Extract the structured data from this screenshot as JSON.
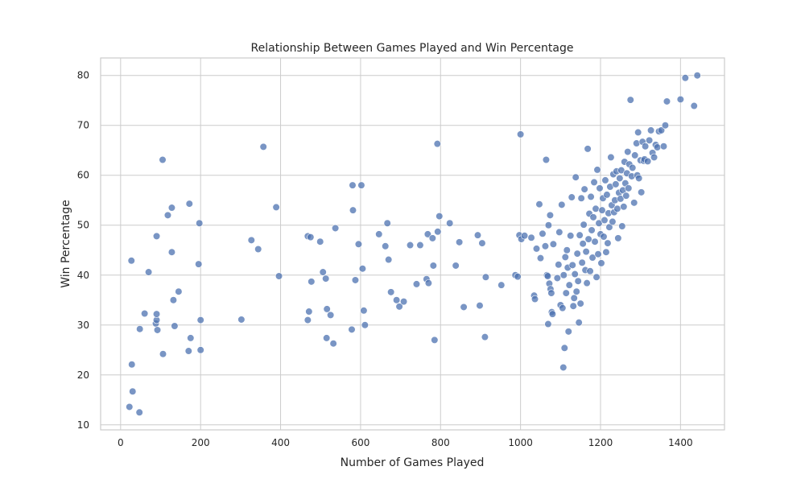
{
  "chart_data": {
    "type": "scatter",
    "title": "Relationship Between Games Played and Win Percentage",
    "xlabel": "Number of Games Played",
    "ylabel": "Win Percentage",
    "xlim": [
      -50,
      1510
    ],
    "ylim": [
      9,
      83.5
    ],
    "x_ticks": [
      0,
      200,
      400,
      600,
      800,
      1000,
      1200,
      1400
    ],
    "y_ticks": [
      10,
      20,
      30,
      40,
      50,
      60,
      70,
      80
    ],
    "grid": true,
    "point_color": "#4c72b0",
    "points": [
      [
        22,
        13.6
      ],
      [
        30,
        16.7
      ],
      [
        28,
        22.1
      ],
      [
        47,
        12.5
      ],
      [
        27,
        42.9
      ],
      [
        48,
        29.2
      ],
      [
        60,
        32.3
      ],
      [
        70,
        40.6
      ],
      [
        88,
        30.3
      ],
      [
        90,
        31.0
      ],
      [
        90,
        32.2
      ],
      [
        90,
        47.8
      ],
      [
        92,
        29.0
      ],
      [
        105,
        63.1
      ],
      [
        106,
        24.2
      ],
      [
        118,
        52.0
      ],
      [
        128,
        53.5
      ],
      [
        128,
        44.6
      ],
      [
        132,
        35.0
      ],
      [
        135,
        29.8
      ],
      [
        145,
        36.7
      ],
      [
        170,
        24.8
      ],
      [
        172,
        54.3
      ],
      [
        175,
        27.4
      ],
      [
        195,
        42.2
      ],
      [
        197,
        50.4
      ],
      [
        200,
        31.0
      ],
      [
        200,
        25.0
      ],
      [
        302,
        31.1
      ],
      [
        327,
        47.0
      ],
      [
        344,
        45.2
      ],
      [
        357,
        65.7
      ],
      [
        389,
        53.6
      ],
      [
        396,
        39.8
      ],
      [
        468,
        31.0
      ],
      [
        468,
        47.8
      ],
      [
        471,
        32.7
      ],
      [
        475,
        47.6
      ],
      [
        477,
        38.7
      ],
      [
        499,
        46.7
      ],
      [
        506,
        40.6
      ],
      [
        513,
        39.3
      ],
      [
        515,
        27.4
      ],
      [
        516,
        33.2
      ],
      [
        525,
        32.0
      ],
      [
        532,
        26.3
      ],
      [
        537,
        49.4
      ],
      [
        578,
        29.1
      ],
      [
        580,
        58.0
      ],
      [
        581,
        53.0
      ],
      [
        587,
        39.0
      ],
      [
        595,
        46.2
      ],
      [
        602,
        58.0
      ],
      [
        605,
        41.3
      ],
      [
        608,
        32.9
      ],
      [
        611,
        30.0
      ],
      [
        646,
        48.2
      ],
      [
        662,
        45.8
      ],
      [
        667,
        50.4
      ],
      [
        670,
        43.1
      ],
      [
        676,
        36.6
      ],
      [
        690,
        35.0
      ],
      [
        697,
        33.7
      ],
      [
        708,
        34.7
      ],
      [
        724,
        46.0
      ],
      [
        740,
        38.2
      ],
      [
        749,
        46.0
      ],
      [
        765,
        39.2
      ],
      [
        768,
        48.2
      ],
      [
        770,
        38.4
      ],
      [
        780,
        47.4
      ],
      [
        782,
        41.9
      ],
      [
        785,
        27.0
      ],
      [
        792,
        66.3
      ],
      [
        793,
        48.7
      ],
      [
        797,
        51.8
      ],
      [
        823,
        50.4
      ],
      [
        838,
        41.9
      ],
      [
        847,
        46.6
      ],
      [
        858,
        33.6
      ],
      [
        893,
        48.0
      ],
      [
        898,
        33.9
      ],
      [
        904,
        46.4
      ],
      [
        911,
        27.6
      ],
      [
        913,
        39.6
      ],
      [
        952,
        38.0
      ],
      [
        987,
        40.0
      ],
      [
        993,
        39.7
      ],
      [
        997,
        48.0
      ],
      [
        1000,
        68.2
      ],
      [
        1002,
        47.2
      ],
      [
        1010,
        47.9
      ],
      [
        1027,
        47.5
      ],
      [
        1034,
        35.9
      ],
      [
        1036,
        35.2
      ],
      [
        1040,
        45.3
      ],
      [
        1047,
        54.2
      ],
      [
        1050,
        43.4
      ],
      [
        1055,
        48.3
      ],
      [
        1062,
        45.8
      ],
      [
        1064,
        63.1
      ],
      [
        1066,
        40.0
      ],
      [
        1068,
        39.8
      ],
      [
        1069,
        30.2
      ],
      [
        1070,
        50.0
      ],
      [
        1072,
        38.3
      ],
      [
        1074,
        52.0
      ],
      [
        1075,
        37.2
      ],
      [
        1077,
        36.4
      ],
      [
        1078,
        32.6
      ],
      [
        1080,
        32.2
      ],
      [
        1082,
        46.2
      ],
      [
        1092,
        39.4
      ],
      [
        1095,
        42.1
      ],
      [
        1097,
        48.6
      ],
      [
        1100,
        34.0
      ],
      [
        1103,
        54.1
      ],
      [
        1105,
        33.4
      ],
      [
        1107,
        21.5
      ],
      [
        1108,
        40.0
      ],
      [
        1110,
        25.4
      ],
      [
        1112,
        43.6
      ],
      [
        1114,
        36.4
      ],
      [
        1116,
        45.0
      ],
      [
        1118,
        41.5
      ],
      [
        1120,
        28.7
      ],
      [
        1122,
        38.0
      ],
      [
        1125,
        47.9
      ],
      [
        1128,
        55.6
      ],
      [
        1130,
        42.0
      ],
      [
        1132,
        33.8
      ],
      [
        1134,
        35.4
      ],
      [
        1136,
        40.2
      ],
      [
        1138,
        59.6
      ],
      [
        1140,
        36.7
      ],
      [
        1142,
        44.3
      ],
      [
        1144,
        38.8
      ],
      [
        1146,
        30.5
      ],
      [
        1148,
        48.0
      ],
      [
        1150,
        34.3
      ],
      [
        1152,
        55.4
      ],
      [
        1154,
        42.5
      ],
      [
        1156,
        46.3
      ],
      [
        1158,
        50.1
      ],
      [
        1160,
        57.2
      ],
      [
        1162,
        41.0
      ],
      [
        1164,
        44.7
      ],
      [
        1166,
        38.4
      ],
      [
        1168,
        65.3
      ],
      [
        1170,
        47.2
      ],
      [
        1172,
        52.3
      ],
      [
        1174,
        40.8
      ],
      [
        1176,
        55.7
      ],
      [
        1178,
        49.0
      ],
      [
        1180,
        43.5
      ],
      [
        1182,
        51.6
      ],
      [
        1184,
        58.6
      ],
      [
        1186,
        46.7
      ],
      [
        1188,
        53.3
      ],
      [
        1190,
        39.6
      ],
      [
        1192,
        61.1
      ],
      [
        1194,
        44.2
      ],
      [
        1196,
        50.4
      ],
      [
        1198,
        57.4
      ],
      [
        1200,
        48.2
      ],
      [
        1202,
        42.4
      ],
      [
        1204,
        53.0
      ],
      [
        1206,
        55.4
      ],
      [
        1208,
        47.7
      ],
      [
        1210,
        51.0
      ],
      [
        1212,
        59.0
      ],
      [
        1214,
        44.6
      ],
      [
        1216,
        56.1
      ],
      [
        1218,
        46.4
      ],
      [
        1220,
        52.4
      ],
      [
        1222,
        49.6
      ],
      [
        1224,
        57.7
      ],
      [
        1226,
        63.6
      ],
      [
        1228,
        54.0
      ],
      [
        1230,
        50.7
      ],
      [
        1232,
        60.2
      ],
      [
        1234,
        52.6
      ],
      [
        1236,
        55.0
      ],
      [
        1238,
        58.2
      ],
      [
        1240,
        60.8
      ],
      [
        1242,
        53.3
      ],
      [
        1244,
        47.4
      ],
      [
        1246,
        56.5
      ],
      [
        1248,
        59.4
      ],
      [
        1250,
        55.3
      ],
      [
        1252,
        61.0
      ],
      [
        1254,
        49.8
      ],
      [
        1256,
        57.0
      ],
      [
        1258,
        53.7
      ],
      [
        1260,
        62.7
      ],
      [
        1262,
        58.4
      ],
      [
        1264,
        55.9
      ],
      [
        1266,
        60.4
      ],
      [
        1268,
        64.7
      ],
      [
        1270,
        57.4
      ],
      [
        1272,
        62.2
      ],
      [
        1275,
        75.1
      ],
      [
        1278,
        59.8
      ],
      [
        1280,
        61.5
      ],
      [
        1284,
        54.5
      ],
      [
        1286,
        64.0
      ],
      [
        1290,
        66.4
      ],
      [
        1292,
        60.0
      ],
      [
        1294,
        68.6
      ],
      [
        1296,
        59.4
      ],
      [
        1300,
        63.0
      ],
      [
        1302,
        56.6
      ],
      [
        1305,
        66.7
      ],
      [
        1308,
        62.9
      ],
      [
        1310,
        63.2
      ],
      [
        1312,
        65.8
      ],
      [
        1318,
        62.8
      ],
      [
        1322,
        67.0
      ],
      [
        1326,
        69.0
      ],
      [
        1330,
        64.5
      ],
      [
        1334,
        63.6
      ],
      [
        1338,
        66.1
      ],
      [
        1342,
        65.6
      ],
      [
        1346,
        68.8
      ],
      [
        1352,
        69.0
      ],
      [
        1358,
        65.8
      ],
      [
        1362,
        70.0
      ],
      [
        1366,
        74.8
      ],
      [
        1400,
        75.2
      ],
      [
        1412,
        79.5
      ],
      [
        1434,
        73.9
      ],
      [
        1442,
        80.0
      ]
    ]
  }
}
